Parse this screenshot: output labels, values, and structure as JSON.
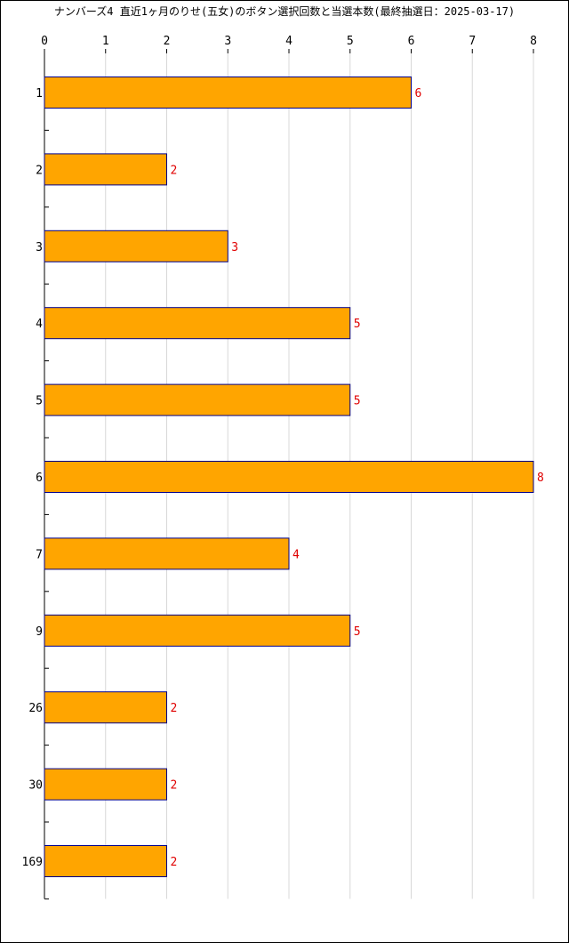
{
  "chart_data": {
    "type": "bar",
    "orientation": "horizontal",
    "title": "ナンバーズ4 直近1ヶ月のりせ(五女)のボタン選択回数と当選本数(最終抽選日：2025-03-17)",
    "categories": [
      "1",
      "2",
      "3",
      "4",
      "5",
      "6",
      "7",
      "9",
      "26",
      "30",
      "169"
    ],
    "values": [
      6,
      2,
      3,
      5,
      5,
      8,
      4,
      5,
      2,
      2,
      2
    ],
    "xlim": [
      0,
      8
    ],
    "x_ticks": [
      "0",
      "1",
      "2",
      "3",
      "4",
      "5",
      "6",
      "7",
      "8"
    ],
    "xlabel": "",
    "ylabel": "",
    "grid": "vertical",
    "legend": "none",
    "bar_color": "#FFA500",
    "bar_border_color": "#00008B",
    "value_label_color": "#E00000",
    "grid_color": "#D8D8D8"
  }
}
